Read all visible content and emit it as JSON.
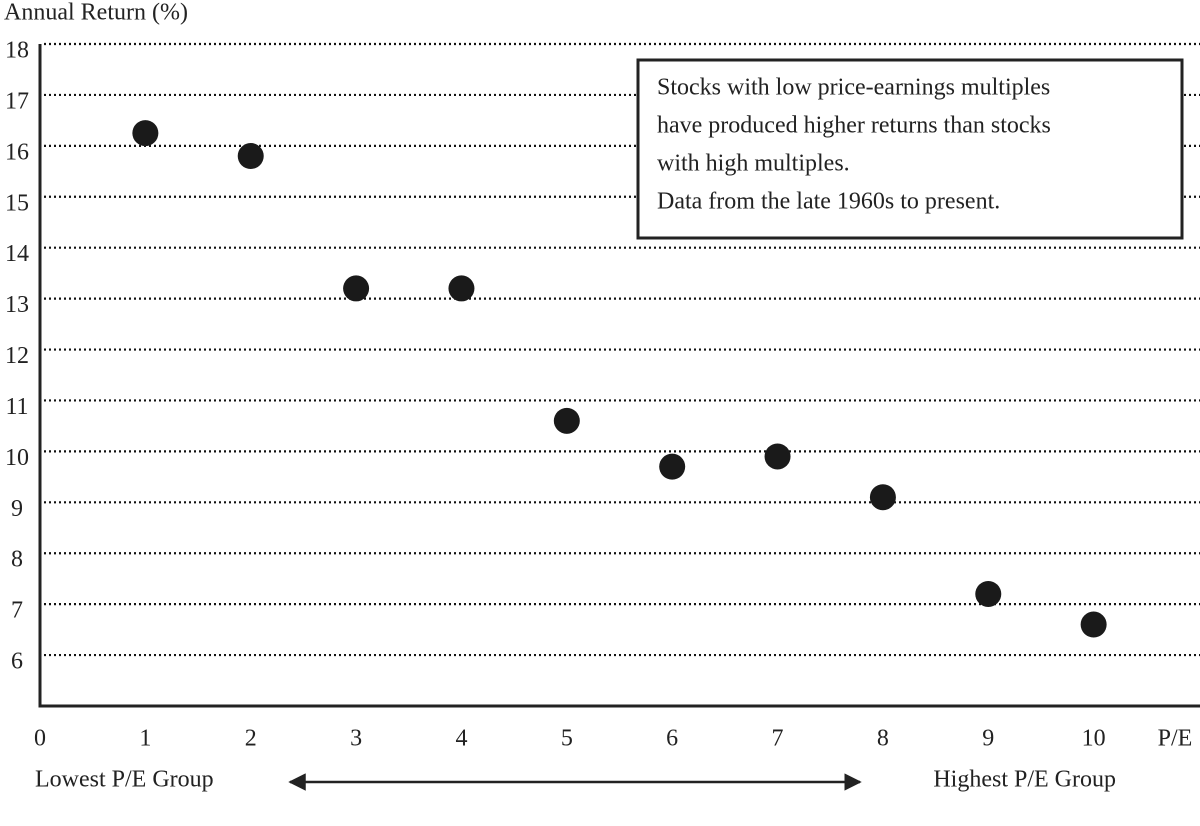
{
  "chart_data": {
    "type": "scatter",
    "y_label": "Annual Return (%)",
    "x_label": "P/E",
    "x": [
      1,
      2,
      3,
      4,
      5,
      6,
      7,
      8,
      9,
      10
    ],
    "values": [
      16.25,
      15.8,
      13.2,
      13.2,
      10.6,
      9.7,
      9.9,
      9.1,
      7.2,
      6.6
    ],
    "color": "#1a1a1a",
    "xlim": [
      0,
      11
    ],
    "xticks": [
      0,
      1,
      2,
      3,
      4,
      5,
      6,
      7,
      8,
      9,
      10
    ],
    "ylim": [
      5,
      18
    ],
    "yticks": [
      6,
      7,
      8,
      9,
      10,
      11,
      12,
      13,
      14,
      15,
      16,
      17,
      18
    ],
    "grid": true,
    "annotation": [
      "Stocks with low price-earnings multiples",
      "have produced higher returns than stocks",
      "with high multiples.",
      "Data from the late 1960s to present."
    ],
    "low_label": "Lowest P/E Group",
    "high_label": "Highest P/E Group"
  }
}
